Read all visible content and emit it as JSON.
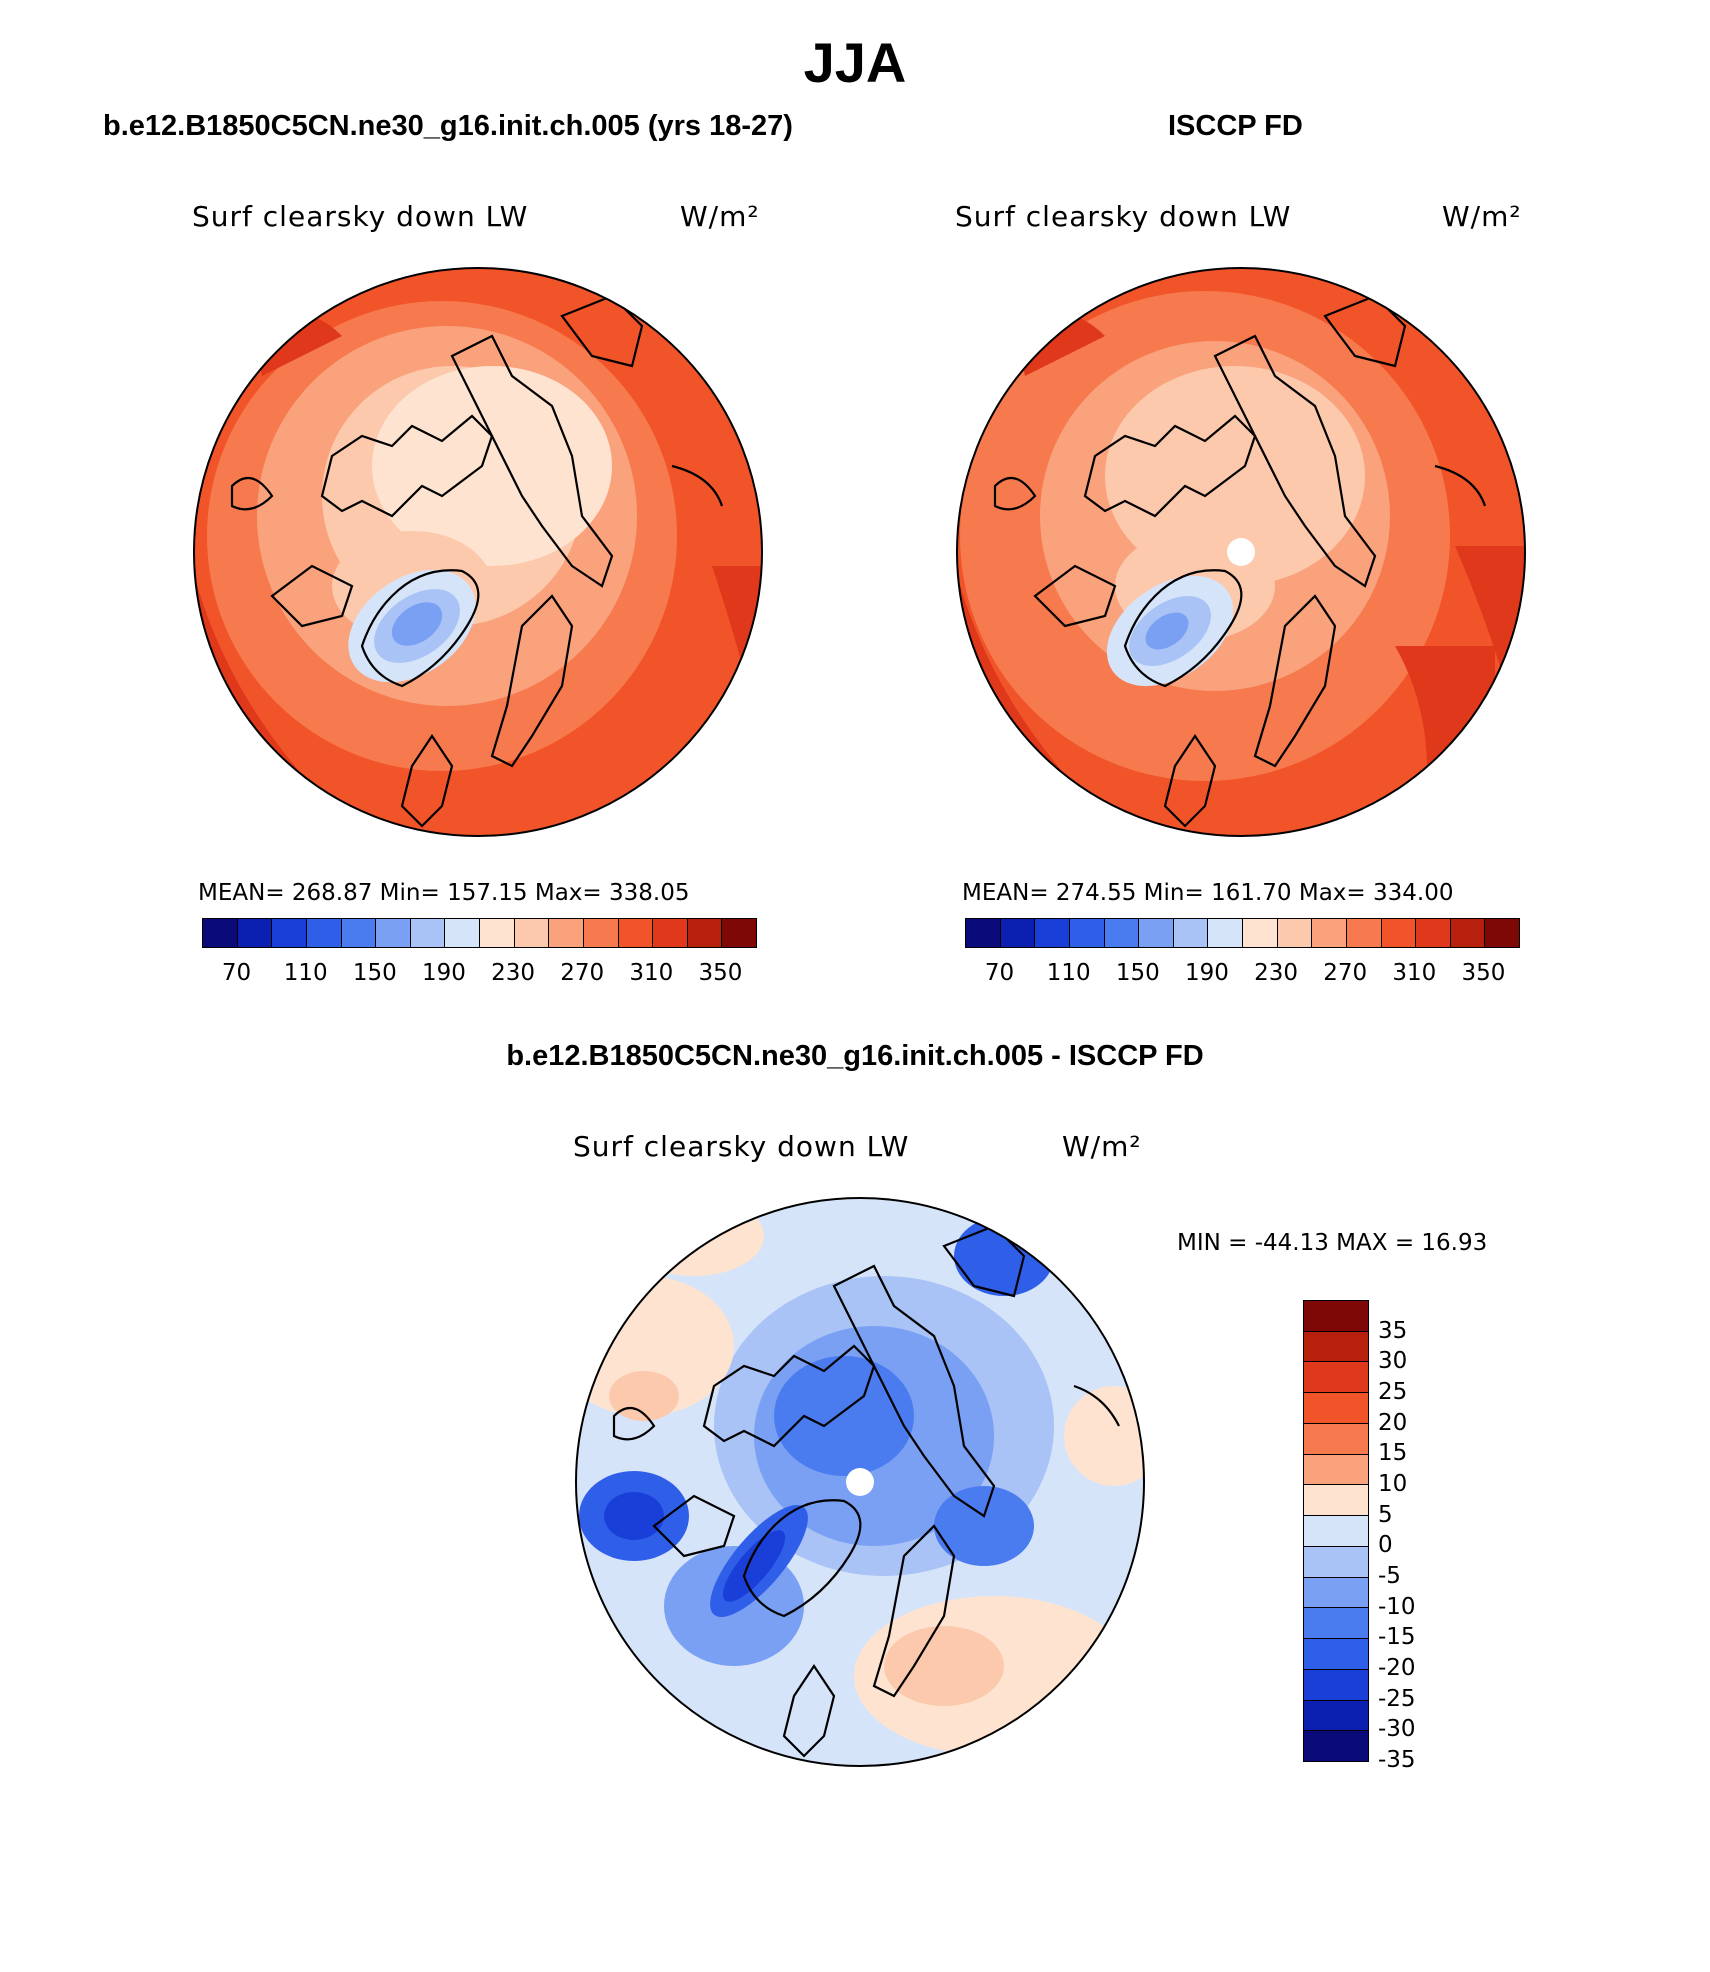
{
  "title": "JJA",
  "panels": {
    "left": {
      "subtitle": "b.e12.B1850C5CN.ne30_g16.init.ch.005 (yrs 18-27)",
      "variable": "Surf clearsky down LW",
      "units": "W/m²",
      "stats": "MEAN= 268.87   Min= 157.15   Max= 338.05",
      "pole_hole": false
    },
    "right": {
      "subtitle": "ISCCP FD",
      "variable": "Surf clearsky down LW",
      "units": "W/m²",
      "stats": "MEAN= 274.55   Min= 161.70   Max= 334.00",
      "pole_hole": true
    },
    "diff": {
      "subtitle": "b.e12.B1850C5CN.ne30_g16.init.ch.005 - ISCCP FD",
      "variable": "Surf clearsky down LW",
      "units": "W/m²",
      "minmax": "MIN = -44.13 MAX =  16.93",
      "pole_hole": true
    }
  },
  "colorbar_abs": {
    "colors": [
      "#0a0a7a",
      "#0b20b0",
      "#1a3fd8",
      "#2f5fe8",
      "#4a7bef",
      "#7aa0f3",
      "#a9c3f6",
      "#d6e4fa",
      "#fde3d0",
      "#fcc9ad",
      "#f9a27c",
      "#f67a4e",
      "#f2542a",
      "#e0381a",
      "#b8200e",
      "#7e0806"
    ],
    "tick_labels": [
      "70",
      "110",
      "150",
      "190",
      "230",
      "270",
      "310",
      "350"
    ]
  },
  "colorbar_diff": {
    "colors": [
      "#7e0806",
      "#b8200e",
      "#e0381a",
      "#f2542a",
      "#f67a4e",
      "#f9a27c",
      "#fde3d0",
      "#d6e4fa",
      "#a9c3f6",
      "#7aa0f3",
      "#4a7bef",
      "#2f5fe8",
      "#1a3fd8",
      "#0b20b0",
      "#0a0a7a"
    ],
    "tick_labels": [
      "35",
      "30",
      "25",
      "20",
      "15",
      "10",
      "5",
      "0",
      "-5",
      "-10",
      "-15",
      "-20",
      "-25",
      "-30",
      "-35"
    ]
  },
  "chart_data": [
    {
      "type": "heatmap",
      "title": "b.e12.B1850C5CN.ne30_g16.init.ch.005 (yrs 18-27)",
      "variable": "Surf clearsky down LW",
      "units": "W/m²",
      "projection": "north polar stereographic",
      "mean": 268.87,
      "min": 157.15,
      "max": 338.05,
      "levels": [
        70,
        110,
        150,
        190,
        230,
        270,
        310,
        350
      ]
    },
    {
      "type": "heatmap",
      "title": "ISCCP FD",
      "variable": "Surf clearsky down LW",
      "units": "W/m²",
      "projection": "north polar stereographic",
      "mean": 274.55,
      "min": 161.7,
      "max": 334.0,
      "levels": [
        70,
        110,
        150,
        190,
        230,
        270,
        310,
        350
      ]
    },
    {
      "type": "heatmap",
      "title": "b.e12.B1850C5CN.ne30_g16.init.ch.005 - ISCCP FD",
      "variable": "Surf clearsky down LW",
      "units": "W/m²",
      "projection": "north polar stereographic",
      "min": -44.13,
      "max": 16.93,
      "levels": [
        -35,
        -30,
        -25,
        -20,
        -15,
        -10,
        -5,
        0,
        5,
        10,
        15,
        20,
        25,
        30,
        35
      ]
    }
  ]
}
